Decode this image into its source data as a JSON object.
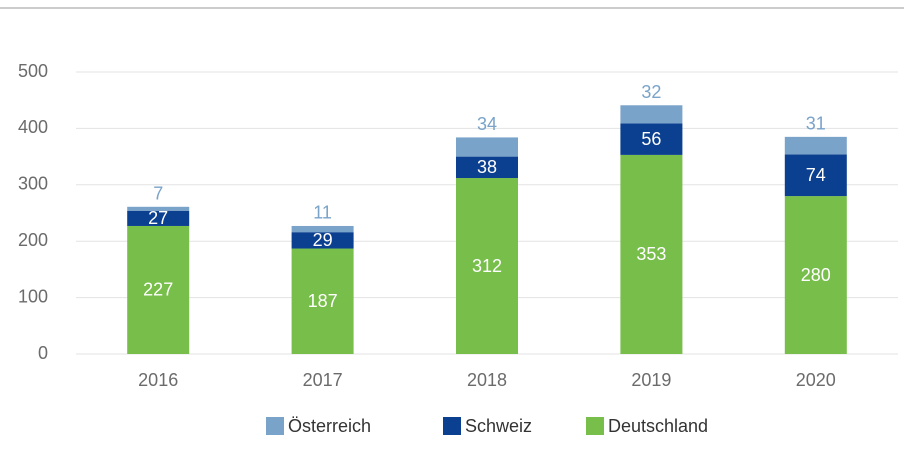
{
  "chart_data": {
    "type": "stacked_bar",
    "categories": [
      "2016",
      "2017",
      "2018",
      "2019",
      "2020"
    ],
    "series": [
      {
        "name": "Deutschland",
        "color": "#78be4b",
        "values": [
          227,
          187,
          312,
          353,
          280
        ]
      },
      {
        "name": "Schweiz",
        "color": "#0b3f8f",
        "values": [
          27,
          29,
          38,
          56,
          74
        ]
      },
      {
        "name": "Österreich",
        "color": "#7aa3c9",
        "values": [
          7,
          11,
          34,
          32,
          31
        ]
      }
    ],
    "legend_order": [
      "Österreich",
      "Schweiz",
      "Deutschland"
    ],
    "ylim": [
      0,
      500
    ],
    "yticks": [
      0,
      100,
      200,
      300,
      400,
      500
    ],
    "grid": true,
    "legend": "bottom"
  }
}
